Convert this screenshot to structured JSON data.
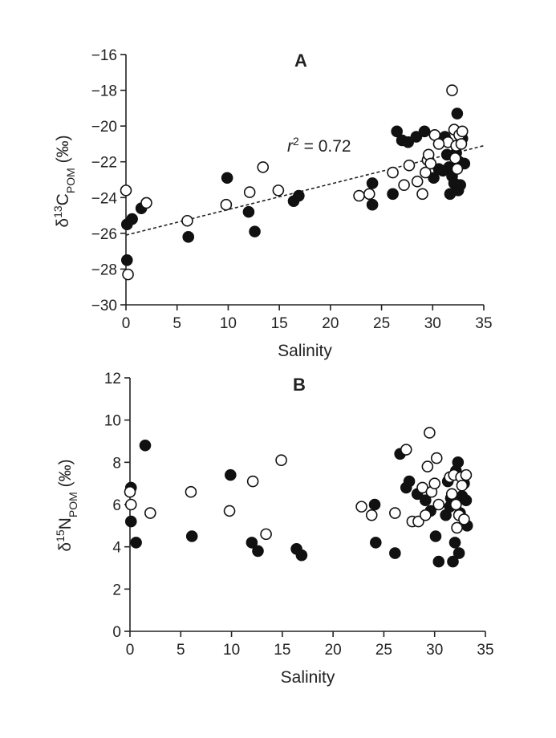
{
  "chart_data": [
    {
      "type": "scatter",
      "panel_label": "A",
      "xlabel": "Salinity",
      "ylabel": {
        "prefix": "δ",
        "sup": "13",
        "main": "C",
        "sub": "POM",
        "unit": " (‰)"
      },
      "xlim": [
        0,
        35
      ],
      "ylim": [
        -30,
        -16
      ],
      "xticks": [
        0,
        5,
        10,
        15,
        20,
        25,
        30,
        35
      ],
      "yticks": [
        -30,
        -28,
        -26,
        -24,
        -22,
        -20,
        -18,
        -16
      ],
      "ytick_labels": [
        "−30",
        "−28",
        "−26",
        "−24",
        "−22",
        "−20",
        "−18",
        "−16"
      ],
      "annotation": {
        "italic": "r",
        "sup": "2",
        "rest": " = 0.72"
      },
      "regression": {
        "x": [
          0,
          35
        ],
        "y": [
          -26.1,
          -21.1
        ]
      },
      "series": [
        {
          "style": "filled",
          "points": [
            [
              0.1,
              -25.5
            ],
            [
              0.6,
              -25.2
            ],
            [
              1.5,
              -24.6
            ],
            [
              0.1,
              -27.5
            ],
            [
              6.1,
              -26.2
            ],
            [
              9.9,
              -22.9
            ],
            [
              12.0,
              -24.8
            ],
            [
              12.6,
              -25.9
            ],
            [
              16.4,
              -24.2
            ],
            [
              16.9,
              -23.9
            ],
            [
              24.1,
              -23.2
            ],
            [
              24.1,
              -24.4
            ],
            [
              26.1,
              -23.8
            ],
            [
              26.5,
              -20.3
            ],
            [
              27.0,
              -20.8
            ],
            [
              27.6,
              -20.9
            ],
            [
              28.4,
              -20.6
            ],
            [
              29.2,
              -20.3
            ],
            [
              30.1,
              -22.9
            ],
            [
              30.6,
              -22.4
            ],
            [
              31.2,
              -20.6
            ],
            [
              31.4,
              -21.6
            ],
            [
              31.6,
              -22.3
            ],
            [
              31.9,
              -22.8
            ],
            [
              32.1,
              -23.2
            ],
            [
              32.3,
              -21.5
            ],
            [
              32.4,
              -19.3
            ],
            [
              32.6,
              -22.0
            ],
            [
              32.7,
              -23.3
            ],
            [
              32.9,
              -20.7
            ],
            [
              33.1,
              -22.1
            ],
            [
              31.7,
              -23.8
            ],
            [
              32.5,
              -23.6
            ],
            [
              31.0,
              -22.5
            ]
          ]
        },
        {
          "style": "open",
          "points": [
            [
              0.0,
              -23.6
            ],
            [
              0.2,
              -28.3
            ],
            [
              2.0,
              -24.3
            ],
            [
              6.0,
              -25.3
            ],
            [
              9.8,
              -24.4
            ],
            [
              12.1,
              -23.7
            ],
            [
              13.4,
              -22.3
            ],
            [
              14.9,
              -23.6
            ],
            [
              22.8,
              -23.9
            ],
            [
              23.8,
              -23.8
            ],
            [
              26.1,
              -22.6
            ],
            [
              27.2,
              -23.3
            ],
            [
              27.7,
              -22.2
            ],
            [
              28.5,
              -23.1
            ],
            [
              29.0,
              -23.8
            ],
            [
              29.3,
              -22.6
            ],
            [
              29.5,
              -21.9
            ],
            [
              29.6,
              -21.6
            ],
            [
              29.8,
              -22.1
            ],
            [
              30.2,
              -20.5
            ],
            [
              31.5,
              -20.9
            ],
            [
              31.9,
              -18.0
            ],
            [
              32.1,
              -20.2
            ],
            [
              32.3,
              -21.1
            ],
            [
              32.4,
              -22.4
            ],
            [
              32.6,
              -20.5
            ],
            [
              32.8,
              -21.0
            ],
            [
              32.9,
              -20.3
            ],
            [
              32.2,
              -21.8
            ],
            [
              30.6,
              -21.0
            ]
          ]
        }
      ]
    },
    {
      "type": "scatter",
      "panel_label": "B",
      "xlabel": "Salinity",
      "ylabel": {
        "prefix": "δ",
        "sup": "15",
        "main": "N",
        "sub": "POM",
        "unit": " (‰)"
      },
      "xlim": [
        0,
        35
      ],
      "ylim": [
        0,
        12
      ],
      "xticks": [
        0,
        5,
        10,
        15,
        20,
        25,
        30,
        35
      ],
      "yticks": [
        0,
        2,
        4,
        6,
        8,
        10,
        12
      ],
      "ytick_labels": [
        "0",
        "2",
        "4",
        "6",
        "8",
        "10",
        "12"
      ],
      "series": [
        {
          "style": "filled",
          "points": [
            [
              0.1,
              6.8
            ],
            [
              0.1,
              5.2
            ],
            [
              0.6,
              4.2
            ],
            [
              1.5,
              8.8
            ],
            [
              6.1,
              4.5
            ],
            [
              9.9,
              7.4
            ],
            [
              12.0,
              4.2
            ],
            [
              12.6,
              3.8
            ],
            [
              16.4,
              3.9
            ],
            [
              16.9,
              3.6
            ],
            [
              24.1,
              6.0
            ],
            [
              24.2,
              4.2
            ],
            [
              26.1,
              3.7
            ],
            [
              26.6,
              8.4
            ],
            [
              27.2,
              6.8
            ],
            [
              27.5,
              7.1
            ],
            [
              28.3,
              6.5
            ],
            [
              29.1,
              6.2
            ],
            [
              29.6,
              5.7
            ],
            [
              30.1,
              4.5
            ],
            [
              30.4,
              3.3
            ],
            [
              31.1,
              5.5
            ],
            [
              31.3,
              7.1
            ],
            [
              31.6,
              6.3
            ],
            [
              31.8,
              3.3
            ],
            [
              32.0,
              4.2
            ],
            [
              32.1,
              7.6
            ],
            [
              32.3,
              8.0
            ],
            [
              32.4,
              3.7
            ],
            [
              32.5,
              5.6
            ],
            [
              32.7,
              6.4
            ],
            [
              32.9,
              7.0
            ],
            [
              33.1,
              6.2
            ],
            [
              33.2,
              5.0
            ],
            [
              31.5,
              5.9
            ]
          ]
        },
        {
          "style": "open",
          "points": [
            [
              0.0,
              6.6
            ],
            [
              0.1,
              6.0
            ],
            [
              2.0,
              5.6
            ],
            [
              6.0,
              6.6
            ],
            [
              9.8,
              5.7
            ],
            [
              12.1,
              7.1
            ],
            [
              13.4,
              4.6
            ],
            [
              14.9,
              8.1
            ],
            [
              22.8,
              5.9
            ],
            [
              23.8,
              5.5
            ],
            [
              26.1,
              5.6
            ],
            [
              27.2,
              8.6
            ],
            [
              27.8,
              5.2
            ],
            [
              28.4,
              5.2
            ],
            [
              28.8,
              6.8
            ],
            [
              29.1,
              5.5
            ],
            [
              29.3,
              7.8
            ],
            [
              29.5,
              9.4
            ],
            [
              29.7,
              6.6
            ],
            [
              30.0,
              7.0
            ],
            [
              30.2,
              8.2
            ],
            [
              30.4,
              6.0
            ],
            [
              31.5,
              7.3
            ],
            [
              31.7,
              6.5
            ],
            [
              31.9,
              7.4
            ],
            [
              32.1,
              6.0
            ],
            [
              32.2,
              4.9
            ],
            [
              32.4,
              5.5
            ],
            [
              32.6,
              7.3
            ],
            [
              32.7,
              6.9
            ],
            [
              32.9,
              5.3
            ],
            [
              33.1,
              7.4
            ]
          ]
        }
      ]
    }
  ]
}
